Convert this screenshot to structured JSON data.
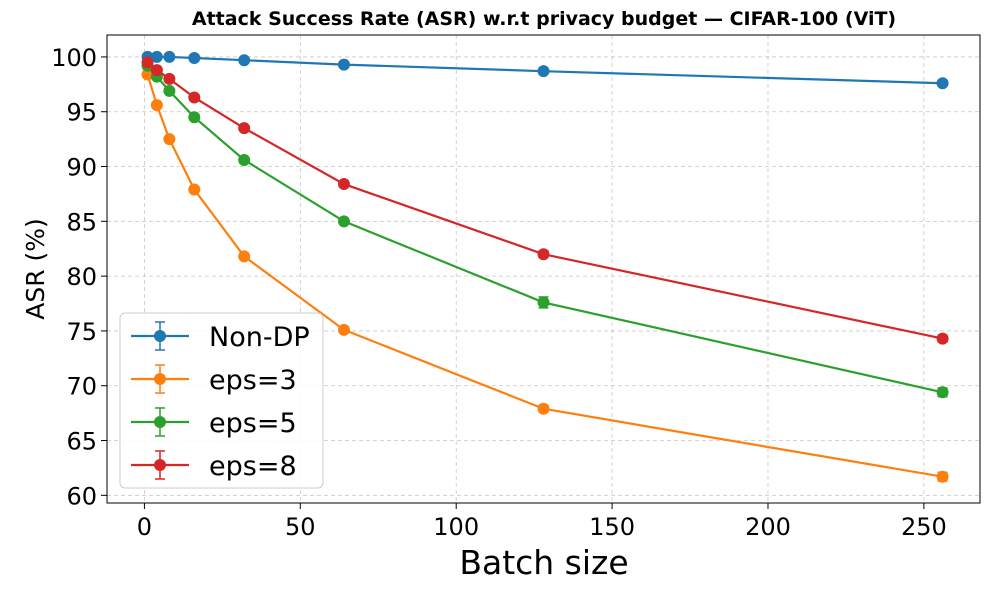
{
  "chart_data": {
    "type": "line",
    "title": "Attack Success Rate (ASR) w.r.t privacy budget — CIFAR-100 (ViT)",
    "xlabel": "Batch size",
    "ylabel": "ASR (%)",
    "xlim": [
      -12,
      268
    ],
    "ylim": [
      59.3,
      102.0
    ],
    "xticks": [
      0,
      50,
      100,
      150,
      200,
      250
    ],
    "yticks": [
      60,
      65,
      70,
      75,
      80,
      85,
      90,
      95,
      100
    ],
    "grid": true,
    "legend_position": "lower-left",
    "series": [
      {
        "name": "Non-DP",
        "color": "#1f77b4",
        "x": [
          1,
          4,
          8,
          16,
          32,
          64,
          128,
          256
        ],
        "y": [
          100.0,
          100.0,
          100.0,
          99.9,
          99.7,
          99.3,
          98.7,
          97.6
        ],
        "err": [
          0.0,
          0.0,
          0.0,
          0.1,
          0.1,
          0.2,
          0.2,
          0.2
        ]
      },
      {
        "name": "eps=3",
        "color": "#ff7f0e",
        "x": [
          1,
          4,
          8,
          16,
          32,
          64,
          128,
          256
        ],
        "y": [
          98.4,
          95.6,
          92.5,
          87.9,
          81.8,
          75.1,
          67.9,
          61.7
        ],
        "err": [
          0.2,
          0.2,
          0.2,
          0.2,
          0.2,
          0.2,
          0.3,
          0.4
        ]
      },
      {
        "name": "eps=5",
        "color": "#2ca02c",
        "x": [
          1,
          4,
          8,
          16,
          32,
          64,
          128,
          256
        ],
        "y": [
          99.2,
          98.2,
          96.9,
          94.5,
          90.6,
          85.0,
          77.6,
          69.4
        ],
        "err": [
          0.2,
          0.2,
          0.2,
          0.2,
          0.2,
          0.2,
          0.5,
          0.4
        ]
      },
      {
        "name": "eps=8",
        "color": "#d62728",
        "x": [
          1,
          4,
          8,
          16,
          32,
          64,
          128,
          256
        ],
        "y": [
          99.5,
          98.8,
          98.0,
          96.3,
          93.5,
          88.4,
          82.0,
          74.3
        ],
        "err": [
          0.1,
          0.1,
          0.1,
          0.2,
          0.2,
          0.2,
          0.3,
          0.3
        ]
      }
    ]
  }
}
